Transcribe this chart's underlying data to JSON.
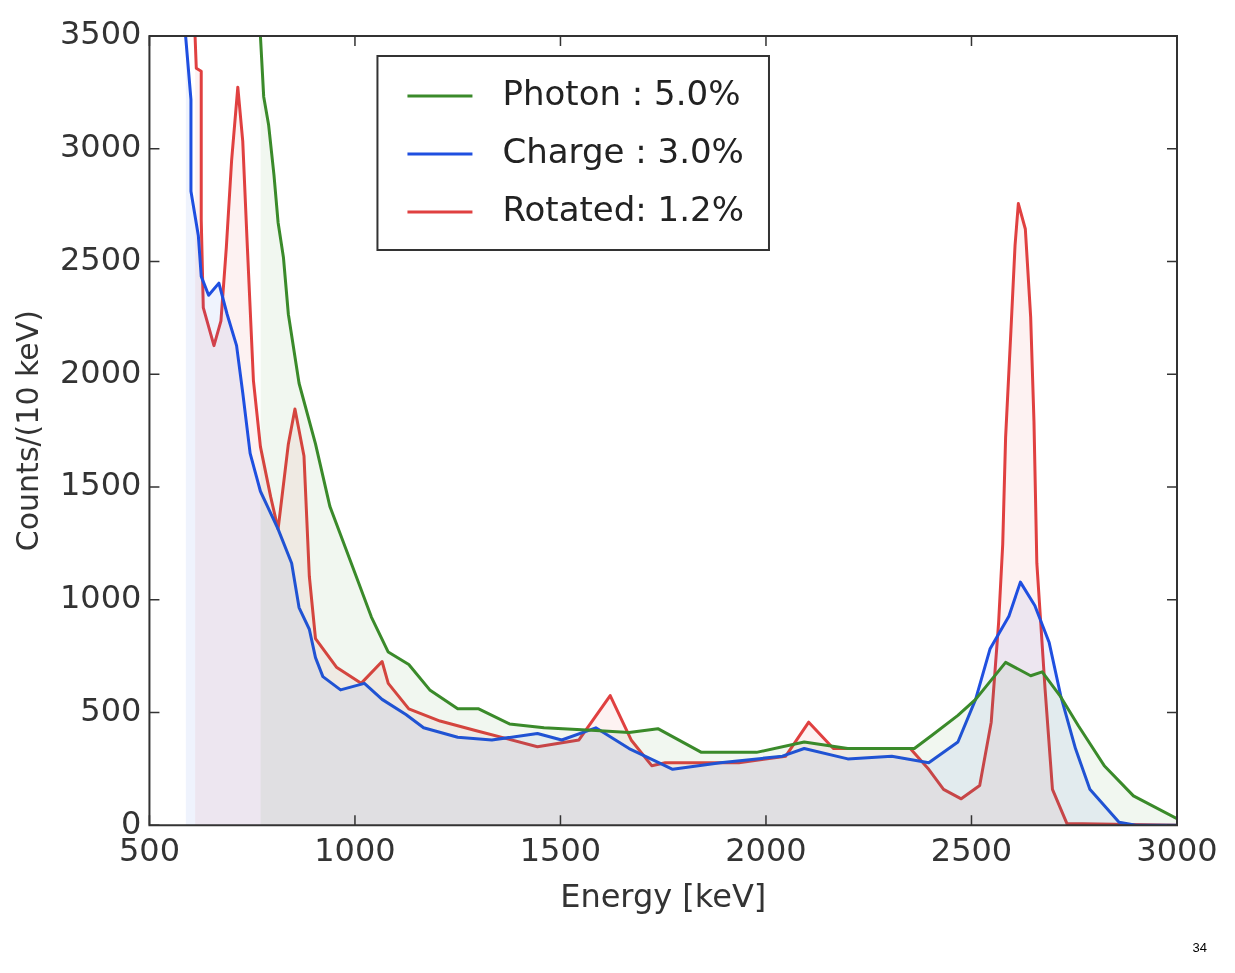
{
  "chart_data": {
    "type": "area",
    "xlabel": "Energy [keV]",
    "ylabel": "Counts/(10 keV)",
    "xlim": [
      500,
      3000
    ],
    "ylim": [
      0,
      3500
    ],
    "xticks": [
      500,
      1000,
      1500,
      2000,
      2500,
      3000
    ],
    "yticks": [
      0,
      500,
      1000,
      1500,
      2000,
      2500,
      3000,
      3500
    ],
    "grid": false,
    "legend": "top",
    "annotations": [
      "34"
    ],
    "series": [
      {
        "name": "Photon : 5.0%",
        "color": "#3a8a2a",
        "x": [
          770,
          778,
          790,
          803,
          813,
          826,
          838,
          864,
          904,
          939,
          997,
          1040,
          1081,
          1131,
          1182,
          1250,
          1301,
          1376,
          1460,
          1586,
          1667,
          1737,
          1843,
          1977,
          2093,
          2199,
          2361,
          2404,
          2467,
          2510,
          2583,
          2644,
          2672,
          2715,
          2760,
          2823,
          2894,
          3000
        ],
        "values": [
          3500,
          3231,
          3105,
          2883,
          2673,
          2518,
          2266,
          1960,
          1691,
          1414,
          1133,
          923,
          768,
          713,
          600,
          516,
          516,
          449,
          432,
          420,
          411,
          428,
          323,
          323,
          369,
          340,
          340,
          399,
          487,
          558,
          722,
          663,
          680,
          575,
          441,
          264,
          130,
          29
        ]
      },
      {
        "name": "Charge : 3.0%",
        "color": "#1f4fe0",
        "x": [
          588,
          601,
          601,
          619,
          626,
          644,
          669,
          689,
          712,
          727,
          745,
          770,
          813,
          846,
          864,
          889,
          904,
          922,
          965,
          1023,
          1066,
          1124,
          1167,
          1250,
          1333,
          1444,
          1503,
          1586,
          1667,
          1773,
          1889,
          2040,
          2093,
          2199,
          2306,
          2396,
          2467,
          2510,
          2545,
          2591,
          2619,
          2654,
          2689,
          2717,
          2753,
          2788,
          2859,
          2900,
          3000
        ],
        "values": [
          3500,
          3218,
          2811,
          2614,
          2434,
          2350,
          2404,
          2266,
          2127,
          1918,
          1649,
          1481,
          1313,
          1162,
          965,
          869,
          743,
          659,
          600,
          629,
          558,
          491,
          432,
          390,
          378,
          407,
          378,
          432,
          340,
          248,
          277,
          306,
          340,
          294,
          306,
          277,
          369,
          558,
          781,
          927,
          1078,
          974,
          810,
          575,
          340,
          159,
          13,
          0,
          0
        ]
      },
      {
        "name": "Rotated: 1.2%",
        "color": "#e04040",
        "x": [
          611,
          614,
          626,
          626,
          631,
          657,
          674,
          687,
          700,
          715,
          727,
          737,
          753,
          770,
          795,
          813,
          838,
          854,
          876,
          889,
          904,
          955,
          1015,
          1066,
          1081,
          1131,
          1207,
          1293,
          1444,
          1545,
          1621,
          1672,
          1722,
          1755,
          1934,
          2048,
          2104,
          2164,
          2245,
          2351,
          2396,
          2432,
          2475,
          2520,
          2548,
          2566,
          2576,
          2583,
          2596,
          2606,
          2614,
          2631,
          2644,
          2652,
          2659,
          2679,
          2697,
          2732,
          3000
        ],
        "values": [
          3500,
          3357,
          3344,
          2686,
          2295,
          2127,
          2237,
          2560,
          2950,
          3273,
          3034,
          2614,
          1972,
          1679,
          1456,
          1313,
          1691,
          1846,
          1637,
          1104,
          827,
          701,
          629,
          726,
          629,
          516,
          462,
          420,
          348,
          378,
          575,
          378,
          264,
          277,
          277,
          306,
          457,
          340,
          340,
          340,
          248,
          159,
          117,
          176,
          457,
          898,
          1246,
          1720,
          2195,
          2572,
          2757,
          2644,
          2253,
          1792,
          1162,
          604,
          159,
          8,
          0
        ]
      }
    ]
  }
}
